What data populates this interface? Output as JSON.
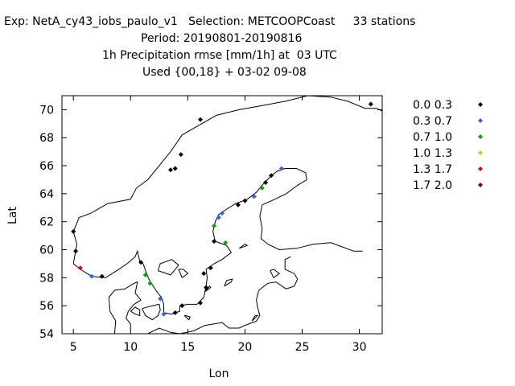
{
  "header": {
    "line1": "Exp: NetA_cy43_iobs_paulo_v1   Selection: METCOOPCoast     33 stations",
    "line2": "Period: 20190801-20190816",
    "line3": "1h Precipitation rmse [mm/1h] at  03 UTC",
    "line4": "Used {00,18} + 03-02 09-08"
  },
  "chart_data": {
    "type": "scatter",
    "xlabel": "Lon",
    "ylabel": "Lat",
    "xlim": [
      4,
      32
    ],
    "ylim": [
      54,
      71
    ],
    "xticks": [
      5,
      10,
      15,
      20,
      25,
      30
    ],
    "yticks": [
      54,
      56,
      58,
      60,
      62,
      64,
      66,
      68,
      70
    ],
    "grid": false,
    "legend_position": "right",
    "series": [
      {
        "name": "0.0 0.3",
        "color": "#000000",
        "points": [
          [
            31.0,
            70.4
          ],
          [
            16.1,
            69.3
          ],
          [
            14.4,
            66.8
          ],
          [
            13.9,
            65.8
          ],
          [
            13.5,
            65.7
          ],
          [
            22.3,
            65.3
          ],
          [
            21.8,
            64.8
          ],
          [
            20.0,
            63.5
          ],
          [
            19.4,
            63.2
          ],
          [
            17.3,
            60.6
          ],
          [
            17.0,
            58.7
          ],
          [
            16.4,
            58.3
          ],
          [
            7.5,
            58.1
          ],
          [
            10.9,
            59.1
          ],
          [
            16.6,
            57.3
          ],
          [
            16.1,
            56.2
          ],
          [
            14.5,
            56.0
          ],
          [
            13.9,
            55.5
          ],
          [
            5.2,
            59.9
          ],
          [
            5.0,
            61.3
          ]
        ]
      },
      {
        "name": "0.3 0.7",
        "color": "#3366dd",
        "points": [
          [
            23.2,
            65.8
          ],
          [
            20.8,
            63.8
          ],
          [
            18.0,
            62.6
          ],
          [
            17.7,
            62.3
          ],
          [
            6.6,
            58.1
          ],
          [
            12.6,
            56.5
          ],
          [
            12.9,
            55.4
          ]
        ]
      },
      {
        "name": "0.7 1.0",
        "color": "#00aa00",
        "points": [
          [
            21.5,
            64.4
          ],
          [
            18.3,
            60.5
          ],
          [
            17.3,
            61.7
          ],
          [
            11.3,
            58.2
          ],
          [
            11.7,
            57.6
          ]
        ]
      },
      {
        "name": "1.0 1.3",
        "color": "#cccc00",
        "points": []
      },
      {
        "name": "1.3 1.7",
        "color": "#ee0000",
        "points": [
          [
            5.6,
            58.7
          ]
        ]
      },
      {
        "name": "1.7 2.0",
        "color": "#8b0000",
        "points": []
      }
    ]
  }
}
